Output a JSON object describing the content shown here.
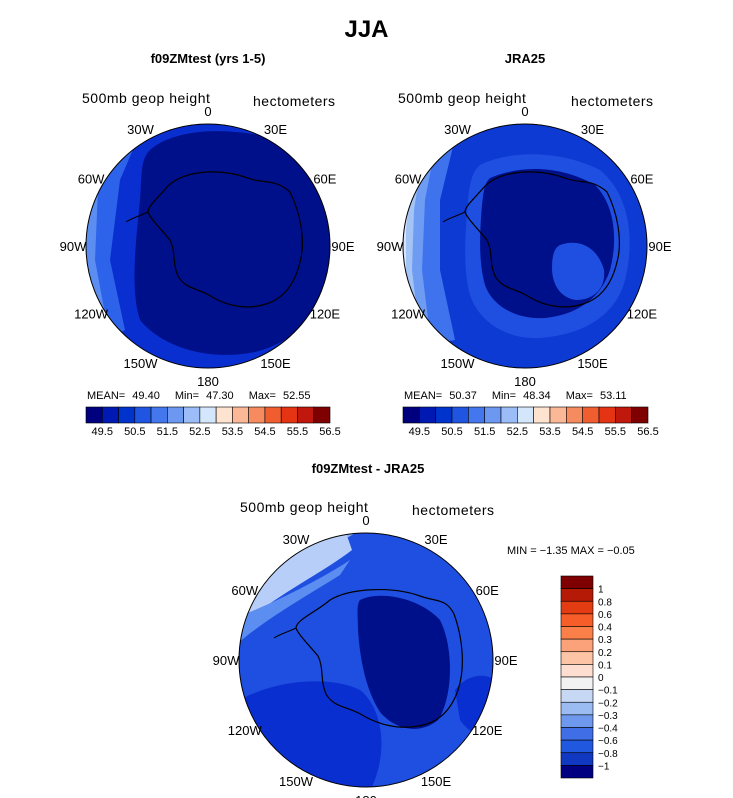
{
  "title": "JJA",
  "panels": [
    {
      "title": "f09ZMtest (yrs 1-5)",
      "variable": "500mb geop height",
      "units": "hectometers",
      "stats": {
        "mean_label": "MEAN=",
        "mean": "49.40",
        "min_label": "Min=",
        "min": "47.30",
        "max_label": "Max=",
        "max": "52.55"
      }
    },
    {
      "title": "JRA25",
      "variable": "500mb geop height",
      "units": "hectometers",
      "stats": {
        "mean_label": "MEAN=",
        "mean": "50.37",
        "min_label": "Min=",
        "min": "48.34",
        "max_label": "Max=",
        "max": "53.11"
      }
    },
    {
      "title": "f09ZMtest - JRA25",
      "variable": "500mb geop height",
      "units": "hectometers",
      "stats_text": "MIN =   −1.35  MAX =   −0.05"
    }
  ],
  "lon_labels": [
    "0",
    "30E",
    "60E",
    "90E",
    "120E",
    "150E",
    "180",
    "150W",
    "120W",
    "90W",
    "60W",
    "30W"
  ],
  "colorbar_top": {
    "colors": [
      "#00007f",
      "#0019b2",
      "#0033cc",
      "#1f55e0",
      "#4477ee",
      "#6c98f2",
      "#9bbcf6",
      "#d4e6fb",
      "#fde3d0",
      "#fbb897",
      "#f78b60",
      "#f05e30",
      "#e53414",
      "#c0180c",
      "#7f0000"
    ],
    "labels": [
      "49.5",
      "50.5",
      "51.5",
      "52.5",
      "53.5",
      "54.5",
      "55.5",
      "56.5"
    ]
  },
  "colorbar_diff": {
    "colors": [
      "#7f0000",
      "#b41a06",
      "#e33b12",
      "#f65d28",
      "#fb7f48",
      "#fca27a",
      "#fdc4a6",
      "#feded0",
      "#f2f2f2",
      "#c7d8f5",
      "#9bbcf2",
      "#6e98ee",
      "#3f6ee6",
      "#2158e0",
      "#1038c0",
      "#000080"
    ],
    "labels": [
      "1",
      "0.8",
      "0.6",
      "0.4",
      "0.3",
      "0.2",
      "0.1",
      "0",
      "−0.1",
      "−0.2",
      "−0.3",
      "−0.4",
      "−0.6",
      "−0.8",
      "−1"
    ]
  },
  "map_data": {
    "projection": "south polar stereographic",
    "field": "500mb geopotential height, JJA"
  }
}
